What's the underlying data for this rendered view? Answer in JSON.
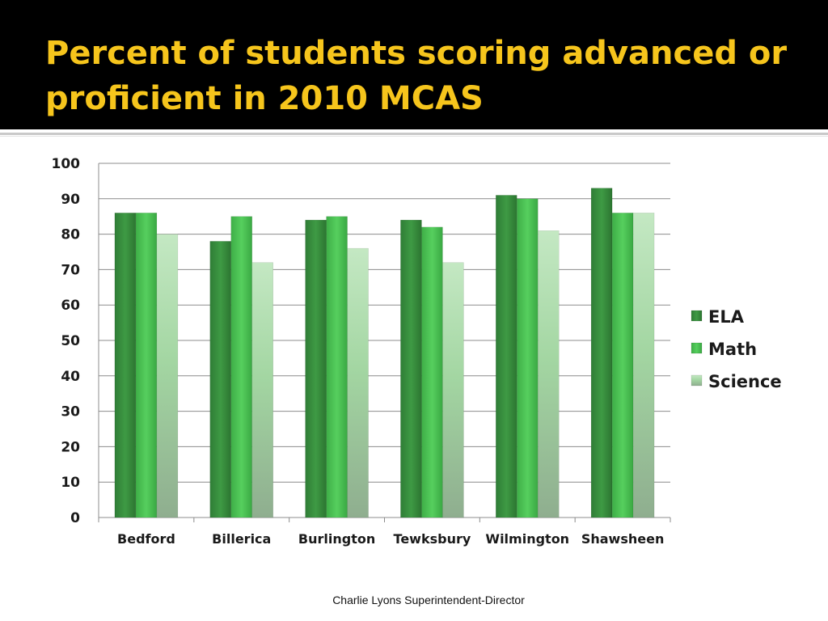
{
  "slide": {
    "title": "Percent of students scoring advanced or proficient in 2010 MCAS",
    "footer": "Charlie Lyons Superintendent-Director"
  },
  "colors": {
    "title": "#f6c51c",
    "title_band": "#000000",
    "gridline": "#8c8c8c"
  },
  "chart_data": {
    "type": "bar",
    "title": "",
    "xlabel": "",
    "ylabel": "",
    "ylim": [
      0,
      100
    ],
    "yticks": [
      0,
      10,
      20,
      30,
      40,
      50,
      60,
      70,
      80,
      90,
      100
    ],
    "grid": true,
    "legend_position": "right",
    "categories": [
      "Bedford",
      "Billerica",
      "Burlington",
      "Tewksbury",
      "Wilmington",
      "Shawsheen"
    ],
    "series": [
      {
        "name": "ELA",
        "color": "#3e9a44",
        "values": [
          86,
          78,
          84,
          84,
          91,
          93
        ]
      },
      {
        "name": "Math",
        "color": "#4cc555",
        "values": [
          86,
          85,
          85,
          82,
          90,
          86
        ]
      },
      {
        "name": "Science",
        "color": "#a3d6a2",
        "values": [
          80,
          72,
          76,
          72,
          81,
          86
        ]
      }
    ]
  }
}
